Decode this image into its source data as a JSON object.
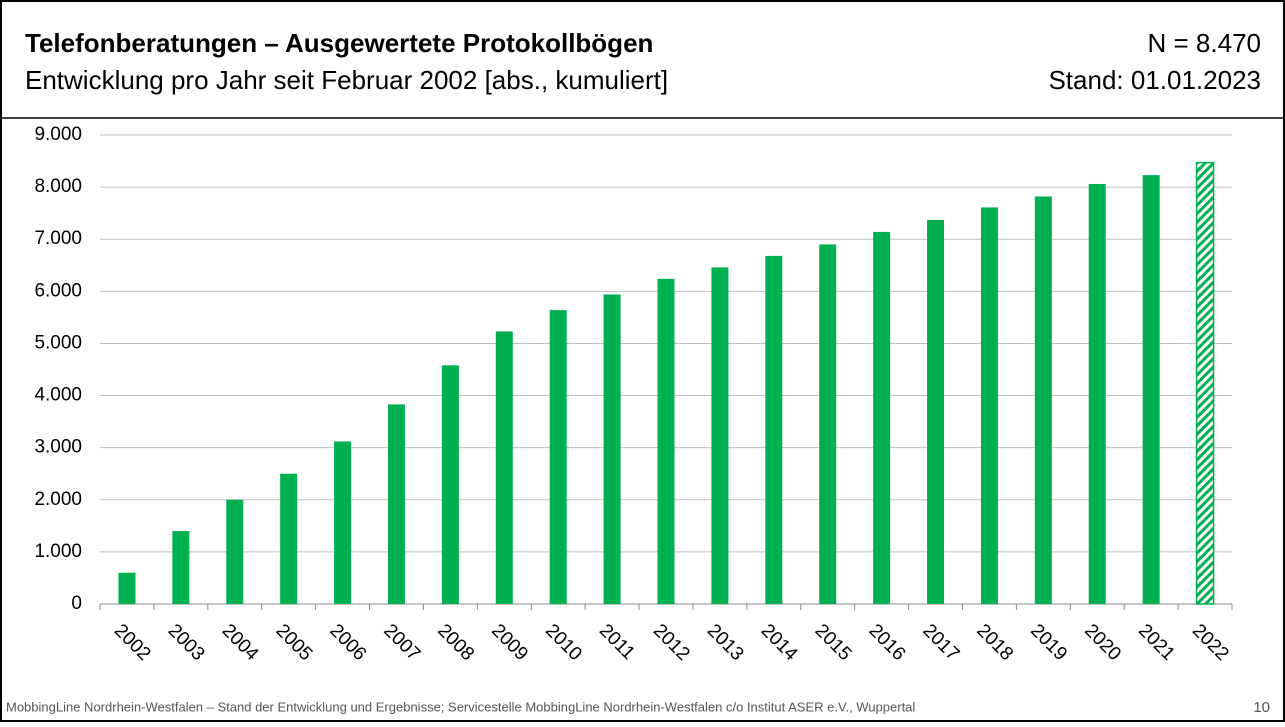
{
  "chart_data": {
    "type": "bar",
    "title": "Telefonberatungen – Ausgewertete Protokollbögen",
    "subtitle": "Entwicklung pro Jahr seit Februar 2002 [abs., kumuliert]",
    "annotations": [
      "N = 8.470",
      "Stand: 01.01.2023"
    ],
    "categories": [
      "2002",
      "2003",
      "2004",
      "2005",
      "2006",
      "2007",
      "2008",
      "2009",
      "2010",
      "2011",
      "2012",
      "2013",
      "2014",
      "2015",
      "2016",
      "2017",
      "2018",
      "2019",
      "2020",
      "2021",
      "2022"
    ],
    "values": [
      600,
      1400,
      2000,
      2500,
      3120,
      3830,
      4580,
      5230,
      5640,
      5940,
      6240,
      6460,
      6680,
      6900,
      7140,
      7370,
      7610,
      7820,
      8060,
      8230,
      8470
    ],
    "hatched": [
      false,
      false,
      false,
      false,
      false,
      false,
      false,
      false,
      false,
      false,
      false,
      false,
      false,
      false,
      false,
      false,
      false,
      false,
      false,
      false,
      true
    ],
    "color": "#00b050",
    "ylim": [
      0,
      9000
    ],
    "yticks": [
      0,
      {
        "value": 1000,
        "label": "1.000"
      },
      {
        "value": 2000,
        "label": "2.000"
      },
      {
        "value": 3000,
        "label": "3.000"
      },
      {
        "value": 4000,
        "label": "4.000"
      },
      {
        "value": 5000,
        "label": "5.000"
      },
      {
        "value": 6000,
        "label": "6.000"
      },
      {
        "value": 7000,
        "label": "7.000"
      },
      {
        "value": 8000,
        "label": "8.000"
      },
      {
        "value": 9000,
        "label": "9.000"
      }
    ],
    "grid": true
  },
  "footer": {
    "text": "MobbingLine Nordrhein-Westfalen – Stand der Entwicklung und Ergebnisse; Servicestelle MobbingLine Nordrhein-Westfalen c/o Institut ASER e.V., Wuppertal",
    "page": "10"
  }
}
